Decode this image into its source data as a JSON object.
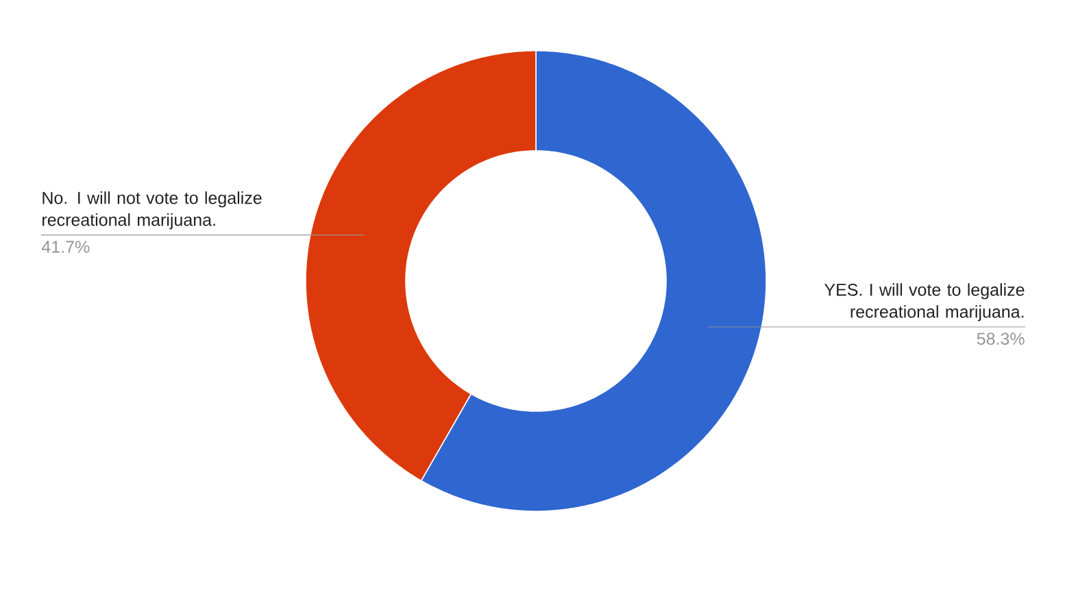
{
  "chart_data": {
    "type": "donut",
    "categories": [
      "YES. I will vote to legalize recreational marijuana.",
      "No. I will not vote to legalize recreational marijuana."
    ],
    "values": [
      58.3,
      41.7
    ],
    "colors": [
      "#2f66d0",
      "#dc3a0c"
    ],
    "value_labels": [
      "58.3%",
      "41.7%"
    ]
  }
}
